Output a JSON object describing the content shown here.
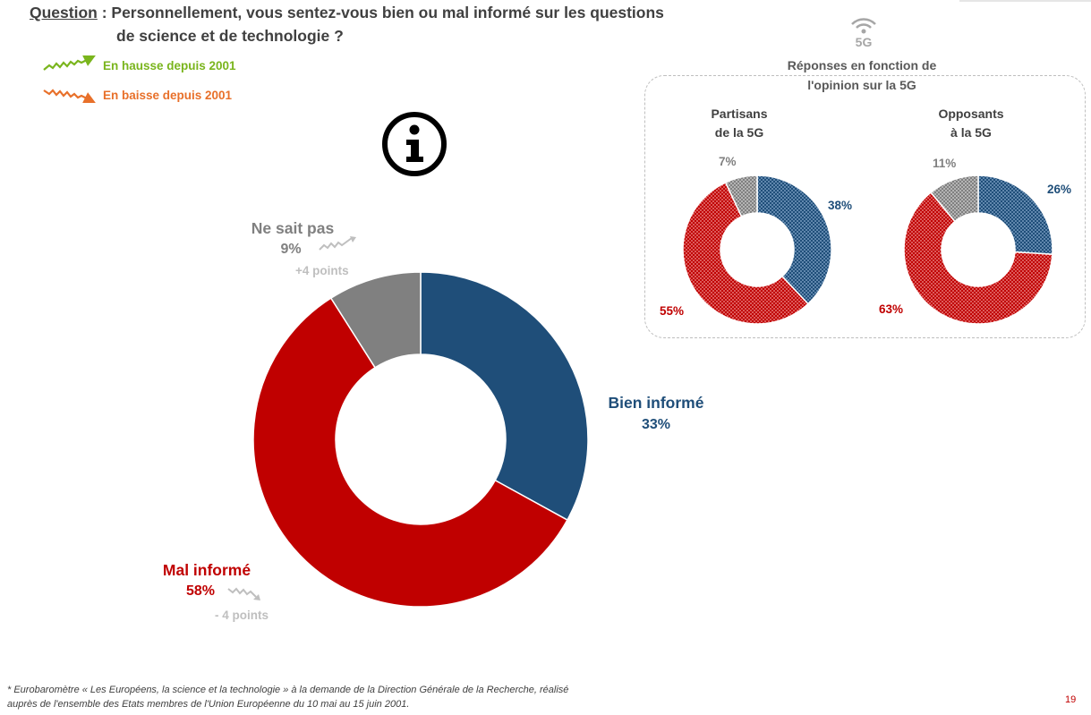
{
  "question": {
    "label": "Question",
    "line1": " : Personnellement, vous sentez-vous bien ou mal informé sur les questions",
    "line2": "de science et de technologie ?"
  },
  "legend": {
    "up_label": "En hausse depuis 2001",
    "down_label": "En baisse depuis 2001"
  },
  "colors": {
    "bien": "#1f4e79",
    "mal": "#c00000",
    "nsp": "#808080",
    "up": "#7ab51d",
    "down": "#e8702a"
  },
  "chart_data": [
    {
      "type": "pie",
      "categories": [
        "Bien informé",
        "Mal informé",
        "Ne sait pas"
      ],
      "values": [
        33,
        58,
        9
      ],
      "value_labels": [
        "33%",
        "58%",
        "9%"
      ],
      "changes": [
        "",
        "- 4 points",
        "+4 points"
      ],
      "donut": true
    },
    {
      "type": "pie",
      "title": "Partisans de la 5G",
      "categories": [
        "Bien informé",
        "Mal informé",
        "Ne sait pas"
      ],
      "values": [
        38,
        55,
        7
      ],
      "value_labels": [
        "38%",
        "55%",
        "7%"
      ],
      "donut": true
    },
    {
      "type": "pie",
      "title": "Opposants à la 5G",
      "categories": [
        "Bien informé",
        "Mal informé",
        "Ne sait pas"
      ],
      "values": [
        26,
        63,
        11
      ],
      "value_labels": [
        "26%",
        "63%",
        "11%"
      ],
      "donut": true
    }
  ],
  "box5g": {
    "icon_text": "5G",
    "title_line1": "Réponses en fonction de",
    "title_line2": "l'opinion sur la 5G",
    "sub1_line1": "Partisans",
    "sub1_line2": "de la 5G",
    "sub2_line1": "Opposants",
    "sub2_line2": "à la 5G"
  },
  "footnote": {
    "line1": "* Eurobaromètre « Les Européens, la science et la technologie » à la demande de la Direction Générale de la Recherche, réalisé",
    "line2": "auprès de l'ensemble des Etats membres de l'Union Européenne du 10 mai au 15 juin 2001."
  },
  "page_number": "19"
}
